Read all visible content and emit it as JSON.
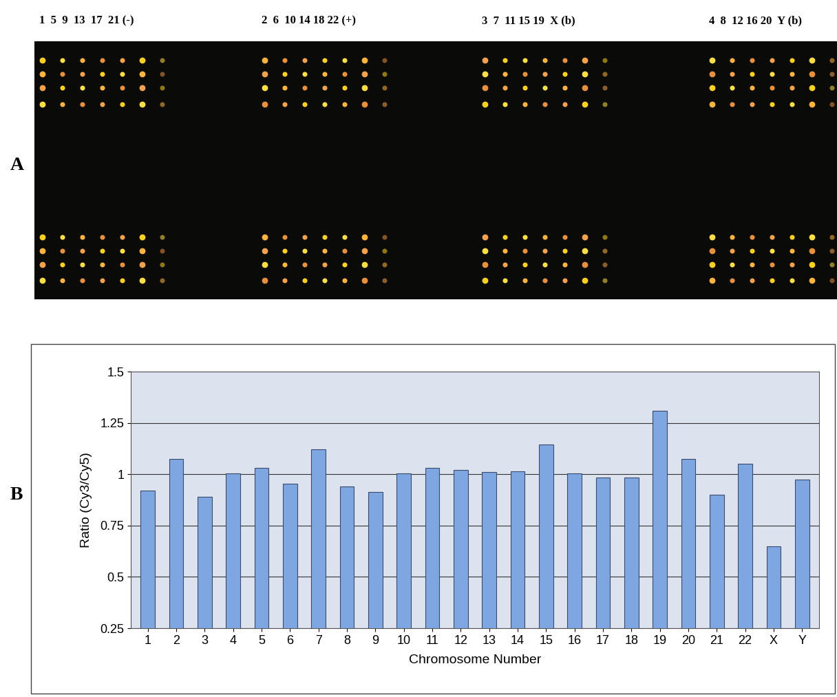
{
  "panel_labels": [
    "A",
    "B"
  ],
  "array_header": [
    "1  5  9  13  17  21 (-)",
    "2  6  10 14 18 22 (+)",
    "3  7  11 15 19  X (b)",
    "4  8  12 16 20  Y (b)"
  ],
  "chart_data": {
    "type": "bar",
    "categories": [
      "1",
      "2",
      "3",
      "4",
      "5",
      "6",
      "7",
      "8",
      "9",
      "10",
      "11",
      "12",
      "13",
      "14",
      "15",
      "16",
      "17",
      "18",
      "19",
      "20",
      "21",
      "22",
      "X",
      "Y"
    ],
    "values": [
      0.92,
      1.075,
      0.89,
      1.005,
      1.03,
      0.955,
      1.12,
      0.94,
      0.915,
      1.005,
      1.03,
      1.02,
      1.01,
      1.015,
      1.145,
      1.005,
      0.985,
      0.985,
      1.31,
      1.075,
      0.9,
      1.05,
      0.65,
      0.975
    ],
    "color": "#7ea6e0",
    "x_label": "Chromosome Number",
    "y_label": "Ratio (Cy3/Cy5)",
    "ylim": [
      0.25,
      1.5
    ],
    "yticks": [
      0.25,
      0.5,
      0.75,
      1,
      1.25,
      1.5
    ],
    "grid": true
  }
}
